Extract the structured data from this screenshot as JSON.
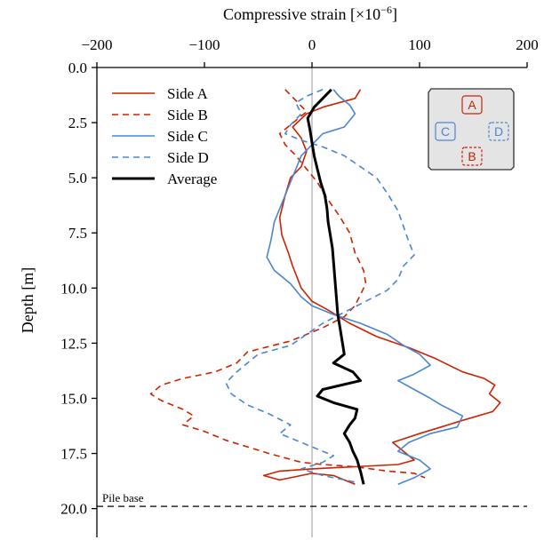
{
  "chart_data": {
    "type": "line",
    "xlabel_prefix": "Compressive strain [×10",
    "xlabel_exp": "−6",
    "xlabel_suffix": "]",
    "ylabel": "Depth [m]",
    "xlim": [
      -200,
      200
    ],
    "ylim": [
      0,
      20.8
    ],
    "y_inverted": true,
    "x_axis_position": "top",
    "xticks": [
      -200,
      -100,
      0,
      100,
      200
    ],
    "xtick_labels": [
      "−200",
      "−100",
      "0",
      "100",
      "200"
    ],
    "yticks": [
      0,
      2.5,
      5,
      7.5,
      10,
      12.5,
      15,
      17.5,
      20
    ],
    "ytick_labels": [
      "0.0",
      "2.5",
      "5.0",
      "7.5",
      "10.0",
      "12.5",
      "15.0",
      "17.5",
      "20.0"
    ],
    "zero_line": {
      "x": 0,
      "color": "#cccccc"
    },
    "pile_base": {
      "depth": 19.9,
      "label": "Pile base"
    },
    "legend_position": "upper-left",
    "series": [
      {
        "name": "Side A",
        "color": "#cc2200",
        "dash": "solid",
        "points": [
          [
            45,
            1.0
          ],
          [
            40,
            1.4
          ],
          [
            25,
            1.6
          ],
          [
            10,
            1.8
          ],
          [
            -5,
            2.1
          ],
          [
            -18,
            2.7
          ],
          [
            -10,
            3.2
          ],
          [
            -5,
            3.8
          ],
          [
            -10,
            4.5
          ],
          [
            -20,
            5.0
          ],
          [
            -25,
            5.8
          ],
          [
            -30,
            6.8
          ],
          [
            -28,
            7.6
          ],
          [
            -22,
            8.4
          ],
          [
            -18,
            9.0
          ],
          [
            -10,
            10.0
          ],
          [
            0,
            10.6
          ],
          [
            15,
            11.0
          ],
          [
            35,
            11.6
          ],
          [
            60,
            12.2
          ],
          [
            90,
            12.7
          ],
          [
            115,
            13.2
          ],
          [
            140,
            13.8
          ],
          [
            160,
            14.1
          ],
          [
            170,
            14.4
          ],
          [
            165,
            14.8
          ],
          [
            175,
            15.2
          ],
          [
            168,
            15.6
          ],
          [
            140,
            16.0
          ],
          [
            120,
            16.3
          ],
          [
            100,
            16.6
          ],
          [
            75,
            17.0
          ],
          [
            85,
            17.4
          ],
          [
            95,
            17.8
          ],
          [
            80,
            18.0
          ],
          [
            40,
            18.1
          ],
          [
            0,
            18.2
          ],
          [
            -30,
            18.3
          ],
          [
            -45,
            18.5
          ],
          [
            -30,
            18.7
          ],
          [
            0,
            18.4
          ],
          [
            20,
            18.5
          ],
          [
            40,
            18.9
          ]
        ]
      },
      {
        "name": "Side B",
        "color": "#cc2200",
        "dash": "dashed",
        "points": [
          [
            -25,
            1.0
          ],
          [
            -15,
            1.5
          ],
          [
            -5,
            2.0
          ],
          [
            -20,
            2.6
          ],
          [
            -30,
            3.0
          ],
          [
            -25,
            3.5
          ],
          [
            -15,
            4.0
          ],
          [
            -5,
            4.6
          ],
          [
            5,
            5.2
          ],
          [
            15,
            6.0
          ],
          [
            25,
            6.7
          ],
          [
            35,
            7.5
          ],
          [
            40,
            8.4
          ],
          [
            48,
            9.2
          ],
          [
            50,
            9.8
          ],
          [
            45,
            10.3
          ],
          [
            40,
            10.8
          ],
          [
            30,
            11.3
          ],
          [
            10,
            11.8
          ],
          [
            -20,
            12.4
          ],
          [
            -60,
            12.9
          ],
          [
            -70,
            13.4
          ],
          [
            -90,
            13.8
          ],
          [
            -120,
            14.1
          ],
          [
            -140,
            14.4
          ],
          [
            -150,
            14.8
          ],
          [
            -140,
            15.1
          ],
          [
            -120,
            15.5
          ],
          [
            -110,
            15.8
          ],
          [
            -120,
            16.2
          ],
          [
            -100,
            16.5
          ],
          [
            -80,
            16.9
          ],
          [
            -60,
            17.2
          ],
          [
            -40,
            17.5
          ],
          [
            -10,
            17.9
          ],
          [
            10,
            18.0
          ],
          [
            40,
            18.1
          ],
          [
            70,
            18.3
          ],
          [
            95,
            18.4
          ],
          [
            105,
            18.6
          ]
        ]
      },
      {
        "name": "Side C",
        "color": "#4a86d0",
        "dash": "solid",
        "points": [
          [
            20,
            1.0
          ],
          [
            25,
            1.3
          ],
          [
            35,
            1.7
          ],
          [
            40,
            2.1
          ],
          [
            30,
            2.7
          ],
          [
            10,
            3.0
          ],
          [
            0,
            3.5
          ],
          [
            -10,
            4.0
          ],
          [
            -15,
            4.6
          ],
          [
            -20,
            5.2
          ],
          [
            -25,
            5.8
          ],
          [
            -30,
            6.4
          ],
          [
            -35,
            7.0
          ],
          [
            -38,
            7.8
          ],
          [
            -42,
            8.6
          ],
          [
            -35,
            9.2
          ],
          [
            -20,
            9.8
          ],
          [
            -10,
            10.4
          ],
          [
            0,
            10.8
          ],
          [
            20,
            11.2
          ],
          [
            45,
            11.6
          ],
          [
            70,
            12.1
          ],
          [
            85,
            12.6
          ],
          [
            100,
            13.0
          ],
          [
            110,
            13.5
          ],
          [
            95,
            13.9
          ],
          [
            80,
            14.2
          ],
          [
            95,
            14.6
          ],
          [
            110,
            15.0
          ],
          [
            120,
            15.3
          ],
          [
            140,
            15.8
          ],
          [
            135,
            16.3
          ],
          [
            110,
            16.6
          ],
          [
            90,
            17.0
          ],
          [
            80,
            17.4
          ],
          [
            100,
            17.8
          ],
          [
            110,
            18.2
          ],
          [
            95,
            18.6
          ],
          [
            80,
            18.9
          ]
        ]
      },
      {
        "name": "Side D",
        "color": "#4a86d0",
        "dash": "dashed",
        "points": [
          [
            10,
            1.0
          ],
          [
            -5,
            1.3
          ],
          [
            -15,
            1.6
          ],
          [
            -10,
            2.1
          ],
          [
            -20,
            2.6
          ],
          [
            -25,
            3.0
          ],
          [
            -10,
            3.3
          ],
          [
            10,
            3.6
          ],
          [
            30,
            4.0
          ],
          [
            45,
            4.5
          ],
          [
            60,
            5.0
          ],
          [
            70,
            5.7
          ],
          [
            80,
            6.5
          ],
          [
            85,
            7.2
          ],
          [
            90,
            7.9
          ],
          [
            95,
            8.5
          ],
          [
            85,
            9.0
          ],
          [
            80,
            9.6
          ],
          [
            70,
            10.1
          ],
          [
            50,
            10.6
          ],
          [
            30,
            11.1
          ],
          [
            10,
            11.6
          ],
          [
            -5,
            12.1
          ],
          [
            -20,
            12.6
          ],
          [
            -50,
            13.0
          ],
          [
            -60,
            13.4
          ],
          [
            -70,
            13.8
          ],
          [
            -80,
            14.3
          ],
          [
            -75,
            14.8
          ],
          [
            -60,
            15.3
          ],
          [
            -40,
            15.7
          ],
          [
            -20,
            16.2
          ],
          [
            -30,
            16.6
          ],
          [
            -10,
            17.0
          ],
          [
            5,
            17.3
          ],
          [
            20,
            17.6
          ],
          [
            10,
            17.9
          ],
          [
            -10,
            18.2
          ],
          [
            10,
            18.5
          ],
          [
            40,
            18.8
          ]
        ]
      },
      {
        "name": "Average",
        "color": "#000000",
        "dash": "solid",
        "points": [
          [
            18,
            1.0
          ],
          [
            10,
            1.4
          ],
          [
            2,
            1.8
          ],
          [
            -4,
            2.3
          ],
          [
            -2,
            2.8
          ],
          [
            0,
            3.4
          ],
          [
            2,
            4.0
          ],
          [
            5,
            4.6
          ],
          [
            8,
            5.2
          ],
          [
            12,
            5.8
          ],
          [
            14,
            6.4
          ],
          [
            15,
            7.0
          ],
          [
            17,
            7.6
          ],
          [
            19,
            8.2
          ],
          [
            20,
            8.8
          ],
          [
            21,
            9.4
          ],
          [
            22,
            10.0
          ],
          [
            23,
            10.6
          ],
          [
            24,
            11.2
          ],
          [
            26,
            11.8
          ],
          [
            28,
            12.4
          ],
          [
            30,
            13.0
          ],
          [
            20,
            13.4
          ],
          [
            38,
            13.8
          ],
          [
            45,
            14.2
          ],
          [
            10,
            14.6
          ],
          [
            5,
            14.9
          ],
          [
            20,
            15.2
          ],
          [
            42,
            15.5
          ],
          [
            40,
            15.9
          ],
          [
            35,
            16.2
          ],
          [
            30,
            16.6
          ],
          [
            35,
            17.0
          ],
          [
            38,
            17.4
          ],
          [
            42,
            17.8
          ],
          [
            45,
            18.3
          ],
          [
            48,
            18.9
          ]
        ]
      }
    ]
  },
  "inset": {
    "labels": {
      "A": "A",
      "B": "B",
      "C": "C",
      "D": "D"
    },
    "background": "#e4e4e4",
    "a_color": "#cc2200",
    "c_color": "#4a86d0"
  }
}
